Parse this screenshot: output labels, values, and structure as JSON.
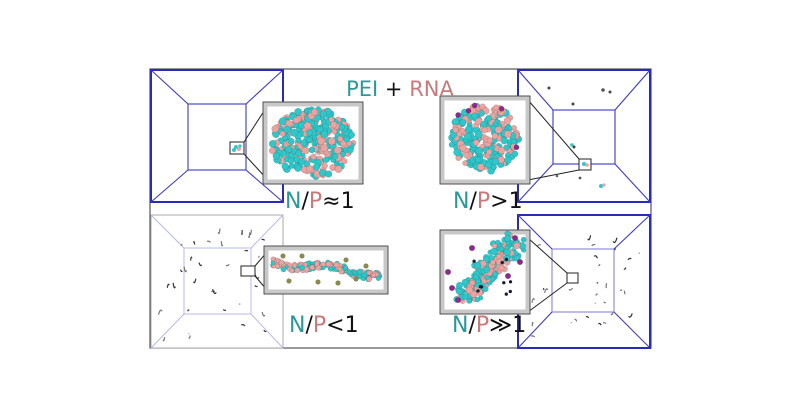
{
  "title": {
    "part1": "PEI",
    "plus": " + ",
    "part2": "RNA"
  },
  "labels": {
    "np": {
      "n": "N",
      "slash": "/",
      "p": "P"
    },
    "panels": [
      {
        "id": "top-left",
        "relation": "≈1"
      },
      {
        "id": "top-right",
        "relation": ">1"
      },
      {
        "id": "bottom-left",
        "relation": "<1"
      },
      {
        "id": "bottom-right",
        "relation": "≫1"
      }
    ]
  },
  "colors": {
    "pei": "#2a9a98",
    "rna": "#c9797a",
    "box_edge": "#2a2ab8",
    "frame": "#555555",
    "text": "#111111",
    "cyan_atom": "#2fc7c9",
    "pink_atom": "#eaa3a0",
    "ion": "#8a2a8a",
    "bead": "#8a8a4a"
  }
}
